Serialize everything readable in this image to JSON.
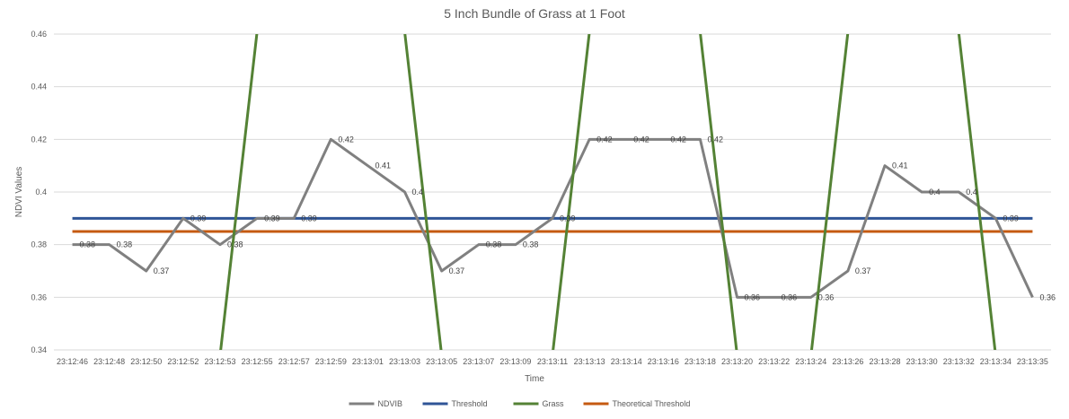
{
  "chart_data": {
    "type": "line",
    "title": "5 Inch Bundle of Grass at 1 Foot",
    "xlabel": "Time",
    "ylabel": "NDVI Values",
    "ylim": [
      0.34,
      0.46
    ],
    "yticks": [
      "0.34",
      "0.36",
      "0.38",
      "0.4",
      "0.42",
      "0.44",
      "0.46"
    ],
    "grid": true,
    "legend_position": "bottom",
    "categories": [
      "23:12:46",
      "23:12:48",
      "23:12:50",
      "23:12:52",
      "23:12:53",
      "23:12:55",
      "23:12:57",
      "23:12:59",
      "23:13:01",
      "23:13:03",
      "23:13:05",
      "23:13:07",
      "23:13:09",
      "23:13:11",
      "23:13:13",
      "23:13:14",
      "23:13:16",
      "23:13:18",
      "23:13:20",
      "23:13:22",
      "23:13:24",
      "23:13:26",
      "23:13:28",
      "23:13:30",
      "23:13:32",
      "23:13:34",
      "23:13:35"
    ],
    "series": [
      {
        "name": "NDVIB",
        "color": "#808080",
        "show_labels": true,
        "values": [
          0.38,
          0.38,
          0.37,
          0.39,
          0.38,
          0.39,
          0.39,
          0.42,
          0.41,
          0.4,
          0.37,
          0.38,
          0.38,
          0.39,
          0.42,
          0.42,
          0.42,
          0.42,
          0.36,
          0.36,
          0.36,
          0.37,
          0.41,
          0.4,
          0.4,
          0.39,
          0.36
        ]
      },
      {
        "name": "Threshold",
        "color": "#2f5597",
        "values": [
          0.39,
          0.39,
          0.39,
          0.39,
          0.39,
          0.39,
          0.39,
          0.39,
          0.39,
          0.39,
          0.39,
          0.39,
          0.39,
          0.39,
          0.39,
          0.39,
          0.39,
          0.39,
          0.39,
          0.39,
          0.39,
          0.39,
          0.39,
          0.39,
          0.39,
          0.39,
          0.39
        ]
      },
      {
        "name": "Grass",
        "color": "#548235",
        "values": [
          0,
          0,
          0,
          0,
          0,
          1,
          1,
          1,
          1,
          1,
          0,
          0,
          0,
          0,
          1,
          1,
          1,
          1,
          0,
          0,
          0,
          1,
          1,
          1,
          1,
          0,
          0
        ]
      },
      {
        "name": "Theoretical Threshold",
        "color": "#c55a11",
        "values": [
          0.385,
          0.385,
          0.385,
          0.385,
          0.385,
          0.385,
          0.385,
          0.385,
          0.385,
          0.385,
          0.385,
          0.385,
          0.385,
          0.385,
          0.385,
          0.385,
          0.385,
          0.385,
          0.385,
          0.385,
          0.385,
          0.385,
          0.385,
          0.385,
          0.385,
          0.385,
          0.385
        ]
      }
    ]
  }
}
